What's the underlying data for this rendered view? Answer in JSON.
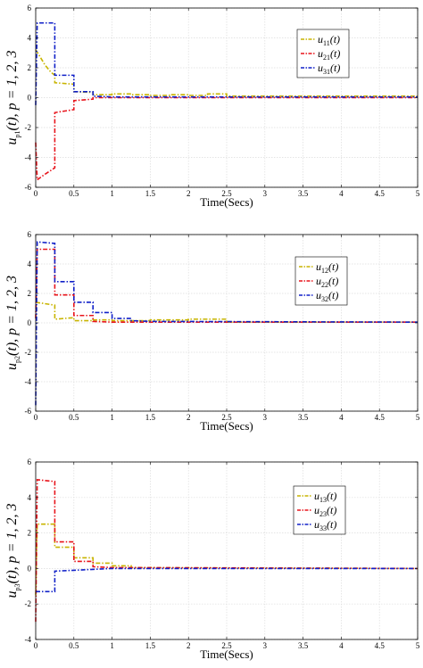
{
  "colors": {
    "series1": "#c8b400",
    "series2": "#e8141b",
    "series3": "#1020c8",
    "grid": "#dcdcdc",
    "axis": "#000000"
  },
  "chart_data": [
    {
      "type": "line",
      "xlabel": "Time(Secs)",
      "ylabel": {
        "base": "u",
        "sub": "p1",
        "rest": "(t), p = 1, 2, 3"
      },
      "xlim": [
        0,
        5
      ],
      "ylim": [
        -6,
        6
      ],
      "xticks": [
        0,
        0.5,
        1,
        1.5,
        2,
        2.5,
        3,
        3.5,
        4,
        4.5,
        5
      ],
      "yticks": [
        -6,
        -4,
        -2,
        0,
        2,
        4,
        6
      ],
      "grid": true,
      "legend_position": "top-right",
      "series": [
        {
          "name": "u",
          "sub": "11",
          "points": [
            [
              0,
              3.2
            ],
            [
              0.05,
              2.8
            ],
            [
              0.12,
              2.2
            ],
            [
              0.2,
              1.7
            ],
            [
              0.25,
              1.5
            ],
            [
              0.25,
              1.0
            ],
            [
              0.5,
              0.9
            ],
            [
              0.5,
              0.4
            ],
            [
              0.75,
              0.35
            ],
            [
              0.75,
              0.2
            ],
            [
              1.0,
              0.2
            ],
            [
              1.0,
              0.25
            ],
            [
              1.25,
              0.25
            ],
            [
              1.25,
              0.2
            ],
            [
              1.5,
              0.2
            ],
            [
              1.5,
              0.15
            ],
            [
              1.75,
              0.15
            ],
            [
              1.75,
              0.2
            ],
            [
              2.0,
              0.2
            ],
            [
              2.0,
              0.15
            ],
            [
              2.25,
              0.15
            ],
            [
              2.25,
              0.25
            ],
            [
              2.5,
              0.25
            ],
            [
              2.5,
              0.1
            ],
            [
              5,
              0.1
            ]
          ]
        },
        {
          "name": "u",
          "sub": "21",
          "points": [
            [
              0,
              -3.0
            ],
            [
              0.02,
              -5.5
            ],
            [
              0.1,
              -5.2
            ],
            [
              0.25,
              -4.7
            ],
            [
              0.25,
              -1.0
            ],
            [
              0.5,
              -0.8
            ],
            [
              0.5,
              -0.2
            ],
            [
              0.75,
              -0.1
            ],
            [
              0.75,
              0.0
            ],
            [
              5,
              0.0
            ]
          ]
        },
        {
          "name": "u",
          "sub": "31",
          "points": [
            [
              0,
              -0.5
            ],
            [
              0.02,
              5.0
            ],
            [
              0.25,
              5.0
            ],
            [
              0.25,
              1.5
            ],
            [
              0.5,
              1.5
            ],
            [
              0.5,
              0.4
            ],
            [
              0.75,
              0.4
            ],
            [
              0.75,
              0.1
            ],
            [
              1.0,
              0.05
            ],
            [
              5,
              0.05
            ]
          ]
        }
      ]
    },
    {
      "type": "line",
      "xlabel": "Time(Secs)",
      "ylabel": {
        "base": "u",
        "sub": "p2",
        "rest": "(t), p = 1, 2, 3"
      },
      "xlim": [
        0,
        5
      ],
      "ylim": [
        -6,
        6
      ],
      "xticks": [
        0,
        0.5,
        1,
        1.5,
        2,
        2.5,
        3,
        3.5,
        4,
        4.5,
        5
      ],
      "yticks": [
        -6,
        -4,
        -2,
        0,
        2,
        4,
        6
      ],
      "grid": true,
      "legend_position": "top-right",
      "series": [
        {
          "name": "u",
          "sub": "12",
          "points": [
            [
              0,
              1.4
            ],
            [
              0.25,
              1.2
            ],
            [
              0.25,
              0.25
            ],
            [
              0.5,
              0.35
            ],
            [
              0.5,
              0.15
            ],
            [
              0.75,
              0.15
            ],
            [
              0.75,
              0.2
            ],
            [
              1.0,
              0.2
            ],
            [
              1.0,
              0.15
            ],
            [
              1.5,
              0.15
            ],
            [
              1.5,
              0.2
            ],
            [
              2.0,
              0.2
            ],
            [
              2.0,
              0.25
            ],
            [
              2.5,
              0.25
            ],
            [
              2.5,
              0.05
            ],
            [
              5,
              0.05
            ]
          ]
        },
        {
          "name": "u",
          "sub": "22",
          "points": [
            [
              0,
              0.3
            ],
            [
              0.02,
              5.0
            ],
            [
              0.25,
              5.0
            ],
            [
              0.25,
              1.9
            ],
            [
              0.5,
              1.9
            ],
            [
              0.5,
              0.5
            ],
            [
              0.75,
              0.5
            ],
            [
              0.75,
              0.1
            ],
            [
              1.0,
              0.05
            ],
            [
              5,
              0.05
            ]
          ]
        },
        {
          "name": "u",
          "sub": "32",
          "points": [
            [
              0,
              -5.6
            ],
            [
              0.02,
              5.5
            ],
            [
              0.25,
              5.4
            ],
            [
              0.25,
              2.8
            ],
            [
              0.5,
              2.8
            ],
            [
              0.5,
              1.4
            ],
            [
              0.75,
              1.4
            ],
            [
              0.75,
              0.7
            ],
            [
              1.0,
              0.7
            ],
            [
              1.0,
              0.3
            ],
            [
              1.25,
              0.3
            ],
            [
              1.25,
              0.15
            ],
            [
              1.5,
              0.1
            ],
            [
              5,
              0.05
            ]
          ]
        }
      ]
    },
    {
      "type": "line",
      "xlabel": "Time(Secs)",
      "ylabel": {
        "base": "u",
        "sub": "p3",
        "rest": "(t), p = 1, 2, 3"
      },
      "xlim": [
        0,
        5
      ],
      "ylim": [
        -4,
        6
      ],
      "xticks": [
        0,
        0.5,
        1,
        1.5,
        2,
        2.5,
        3,
        3.5,
        4,
        4.5,
        5
      ],
      "yticks": [
        -4,
        -2,
        0,
        2,
        4,
        6
      ],
      "grid": true,
      "legend_position": "top-right",
      "series": [
        {
          "name": "u",
          "sub": "13",
          "points": [
            [
              0,
              -1.5
            ],
            [
              0.02,
              2.5
            ],
            [
              0.25,
              2.5
            ],
            [
              0.25,
              1.2
            ],
            [
              0.5,
              1.2
            ],
            [
              0.5,
              0.6
            ],
            [
              0.75,
              0.6
            ],
            [
              0.75,
              0.3
            ],
            [
              1.0,
              0.3
            ],
            [
              1.0,
              0.15
            ],
            [
              1.25,
              0.15
            ],
            [
              1.25,
              0.05
            ],
            [
              5,
              0.0
            ]
          ]
        },
        {
          "name": "u",
          "sub": "23",
          "points": [
            [
              0,
              -3.0
            ],
            [
              0.02,
              5.0
            ],
            [
              0.25,
              4.9
            ],
            [
              0.25,
              1.5
            ],
            [
              0.5,
              1.5
            ],
            [
              0.5,
              0.4
            ],
            [
              0.75,
              0.4
            ],
            [
              0.75,
              0.1
            ],
            [
              1.0,
              0.05
            ],
            [
              5,
              0.0
            ]
          ]
        },
        {
          "name": "u",
          "sub": "33",
          "points": [
            [
              0,
              -1.3
            ],
            [
              0.25,
              -1.3
            ],
            [
              0.25,
              -0.15
            ],
            [
              0.5,
              -0.1
            ],
            [
              0.75,
              -0.05
            ],
            [
              1.0,
              0.0
            ],
            [
              5,
              0.0
            ]
          ]
        }
      ]
    }
  ]
}
